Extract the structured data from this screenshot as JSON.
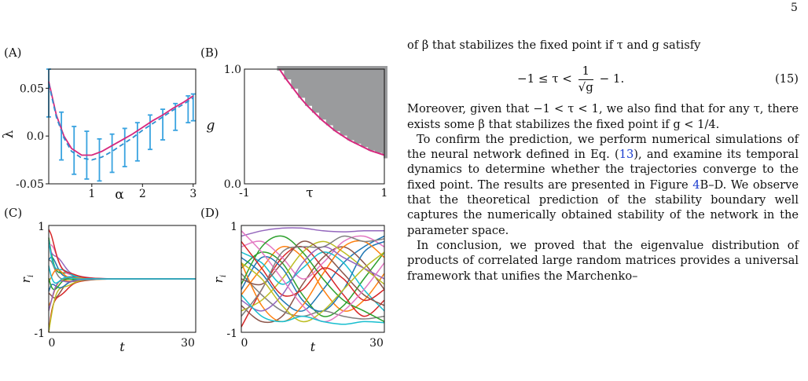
{
  "page_number": "5",
  "text": {
    "p1_start": "of β that stabilizes the fixed point if τ and g satisfy",
    "eq_lhs": "−1 ≤ τ <",
    "eq_frac_num": "1",
    "eq_frac_den": "√g",
    "eq_rhs": "− 1.",
    "eq_num": "(15)",
    "p2": "Moreover, given that −1 < τ < 1, we also find that for any τ, there exists some β that stabilizes the fixed point if g < 1/4.",
    "p3_a": "To confirm the prediction, we perform numerical simulations of the neural network defined in Eq. (",
    "p3_ref1": "13",
    "p3_b": "), and examine its temporal dynamics to determine whether the trajectories converge to the fixed point. The results are presented in Figure ",
    "p3_ref2": "4",
    "p3_c": "B–D. We observe that the theoretical prediction of the stability boundary well captures the numerically obtained stability of the network in the parameter space.",
    "p4": "In conclusion, we proved that the eigenvalue distribution of products of correlated large random matrices provides a universal framework that unifies the Marchenko–"
  },
  "chart_data": [
    {
      "panel": "(A)",
      "type": "line",
      "xlabel": "α",
      "ylabel": "λ",
      "xlim": [
        0.15,
        3.05
      ],
      "ylim": [
        -0.05,
        0.07
      ],
      "xticks": [
        1,
        2,
        3
      ],
      "yticks": [
        -0.05,
        0.0,
        0.05
      ],
      "ytick_labels": [
        "-0.05",
        "0.0",
        "0.05"
      ],
      "series": [
        {
          "style": "solid",
          "color": "#d6287e",
          "x": [
            0.15,
            0.3,
            0.45,
            0.6,
            0.8,
            1.0,
            1.2,
            1.4,
            1.6,
            1.8,
            2.0,
            2.2,
            2.4,
            2.6,
            2.8,
            3.0
          ],
          "y": [
            0.057,
            0.022,
            0.0,
            -0.013,
            -0.02,
            -0.02,
            -0.016,
            -0.01,
            -0.004,
            0.002,
            0.009,
            0.016,
            0.022,
            0.029,
            0.035,
            0.042
          ]
        },
        {
          "style": "dashed",
          "color": "#2f8fd0",
          "x": [
            0.15,
            0.3,
            0.45,
            0.6,
            0.8,
            1.0,
            1.2,
            1.4,
            1.6,
            1.8,
            2.0,
            2.2,
            2.4,
            2.6,
            2.8,
            3.0
          ],
          "y": [
            0.055,
            0.02,
            -0.002,
            -0.016,
            -0.023,
            -0.025,
            -0.022,
            -0.016,
            -0.009,
            -0.002,
            0.006,
            0.013,
            0.02,
            0.027,
            0.033,
            0.04
          ]
        }
      ],
      "errorbars": {
        "color": "#39a3e0",
        "x": [
          0.15,
          0.4,
          0.65,
          0.9,
          1.15,
          1.4,
          1.65,
          1.9,
          2.15,
          2.4,
          2.65,
          2.9,
          3.0
        ],
        "y": [
          0.045,
          0.0,
          -0.015,
          -0.02,
          -0.025,
          -0.018,
          -0.012,
          -0.006,
          0.004,
          0.012,
          0.02,
          0.028,
          0.03
        ],
        "err": [
          0.025,
          0.025,
          0.025,
          0.025,
          0.022,
          0.02,
          0.02,
          0.02,
          0.018,
          0.016,
          0.014,
          0.014,
          0.014
        ]
      }
    },
    {
      "panel": "(B)",
      "type": "area",
      "xlabel": "τ",
      "ylabel": "g",
      "xlim": [
        -1,
        1
      ],
      "ylim": [
        0,
        1
      ],
      "xtick_labels": [
        "-1",
        "1"
      ],
      "ytick_labels": [
        "0.0",
        "1.0"
      ],
      "boundary_curve": {
        "color": "#d6287e",
        "tau": [
          -0.5,
          -0.4,
          -0.3,
          -0.2,
          -0.1,
          0.0,
          0.1,
          0.2,
          0.3,
          0.4,
          0.5,
          0.6,
          0.7,
          0.8,
          0.9,
          1.0
        ],
        "g": [
          1.0,
          0.91,
          0.83,
          0.75,
          0.68,
          0.62,
          0.56,
          0.51,
          0.46,
          0.42,
          0.38,
          0.35,
          0.32,
          0.29,
          0.27,
          0.25
        ]
      },
      "unstable_region_color": "#9a9b9d"
    },
    {
      "panel": "(C)",
      "type": "line",
      "xlabel": "t",
      "ylabel": "r_i",
      "xlim": [
        0,
        30
      ],
      "ylim": [
        -1,
        1
      ],
      "xtick_labels": [
        "0",
        "30"
      ],
      "ytick_labels": [
        "-1",
        "1"
      ],
      "converges_to": 0.0,
      "series": [
        {
          "color": "#1f77b4",
          "start": 0.35
        },
        {
          "color": "#ff7f0e",
          "start": -0.25
        },
        {
          "color": "#2ca02c",
          "start": 0.5
        },
        {
          "color": "#d62728",
          "start": -0.95
        },
        {
          "color": "#9467bd",
          "start": 0.9
        },
        {
          "color": "#8c564b",
          "start": -0.55
        },
        {
          "color": "#e377c2",
          "start": 0.7
        },
        {
          "color": "#7f7f7f",
          "start": 0.15
        },
        {
          "color": "#bcbd22",
          "start": -0.7
        },
        {
          "color": "#17becf",
          "start": 0.6
        },
        {
          "color": "#1f77b4",
          "start": -0.4
        },
        {
          "color": "#ff7f0e",
          "start": 0.25
        },
        {
          "color": "#2ca02c",
          "start": -0.15
        },
        {
          "color": "#d62728",
          "start": 0.8
        },
        {
          "color": "#9467bd",
          "start": -0.3
        },
        {
          "color": "#17becf",
          "start": 0.05
        }
      ]
    },
    {
      "panel": "(D)",
      "type": "line",
      "xlabel": "t",
      "ylabel": "r_i",
      "xlim": [
        0,
        30
      ],
      "ylim": [
        -1,
        1
      ],
      "xtick_labels": [
        "0",
        "30"
      ],
      "ytick_labels": [
        "-1",
        "1"
      ],
      "converges_to": null,
      "series": [
        {
          "color": "#1f77b4",
          "y": [
            0.4,
            0.1,
            -0.4,
            -0.6,
            -0.2,
            0.3,
            0.6,
            0.8
          ]
        },
        {
          "color": "#ff7f0e",
          "y": [
            -0.3,
            0.2,
            0.6,
            0.4,
            -0.2,
            -0.6,
            -0.4,
            0.1
          ]
        },
        {
          "color": "#2ca02c",
          "y": [
            0.2,
            0.5,
            0.3,
            -0.3,
            -0.7,
            -0.5,
            0.0,
            0.5
          ]
        },
        {
          "color": "#d62728",
          "y": [
            -0.9,
            -0.2,
            0.4,
            0.6,
            0.2,
            -0.3,
            -0.7,
            -0.4
          ]
        },
        {
          "color": "#9467bd",
          "y": [
            0.8,
            0.9,
            0.95,
            0.95,
            0.9,
            0.88,
            0.9,
            0.9
          ]
        },
        {
          "color": "#8c564b",
          "y": [
            -0.5,
            -0.8,
            -0.7,
            -0.1,
            0.4,
            0.6,
            0.3,
            -0.2
          ]
        },
        {
          "color": "#e377c2",
          "y": [
            0.6,
            0.7,
            0.4,
            0.0,
            0.3,
            0.7,
            0.8,
            0.6
          ]
        },
        {
          "color": "#7f7f7f",
          "y": [
            0.1,
            -0.3,
            -0.6,
            -0.7,
            -0.6,
            -0.7,
            -0.75,
            -0.7
          ]
        },
        {
          "color": "#bcbd22",
          "y": [
            -0.6,
            -0.4,
            0.0,
            0.5,
            0.7,
            0.5,
            0.2,
            -0.1
          ]
        },
        {
          "color": "#17becf",
          "y": [
            0.5,
            0.3,
            -0.1,
            0.2,
            0.5,
            0.3,
            -0.2,
            -0.6
          ]
        },
        {
          "color": "#1f77b4",
          "y": [
            -0.2,
            0.4,
            0.2,
            -0.4,
            -0.6,
            -0.2,
            0.5,
            0.7
          ]
        },
        {
          "color": "#ff7f0e",
          "y": [
            0.3,
            -0.5,
            -0.8,
            -0.5,
            0.1,
            0.6,
            0.7,
            0.4
          ]
        },
        {
          "color": "#2ca02c",
          "y": [
            -0.1,
            0.6,
            0.8,
            0.5,
            0.0,
            -0.4,
            -0.6,
            -0.8
          ]
        },
        {
          "color": "#d62728",
          "y": [
            0.7,
            0.2,
            -0.3,
            -0.2,
            0.2,
            0.0,
            -0.4,
            -0.2
          ]
        },
        {
          "color": "#9467bd",
          "y": [
            -0.4,
            -0.6,
            -0.3,
            0.3,
            0.6,
            0.4,
            0.2,
            0.0
          ]
        },
        {
          "color": "#8c564b",
          "y": [
            0.0,
            -0.1,
            0.3,
            0.7,
            0.5,
            0.1,
            -0.3,
            -0.5
          ]
        },
        {
          "color": "#e377c2",
          "y": [
            0.9,
            0.5,
            0.0,
            -0.5,
            -0.8,
            -0.6,
            -0.2,
            0.3
          ]
        },
        {
          "color": "#7f7f7f",
          "y": [
            -0.7,
            -0.2,
            0.5,
            0.6,
            0.6,
            0.8,
            0.7,
            0.75
          ]
        },
        {
          "color": "#bcbd22",
          "y": [
            0.3,
            0.0,
            -0.5,
            -0.8,
            -0.6,
            -0.2,
            0.2,
            0.5
          ]
        },
        {
          "color": "#17becf",
          "y": [
            -0.3,
            -0.7,
            -0.8,
            -0.7,
            -0.8,
            -0.85,
            -0.8,
            -0.82
          ]
        }
      ]
    }
  ]
}
